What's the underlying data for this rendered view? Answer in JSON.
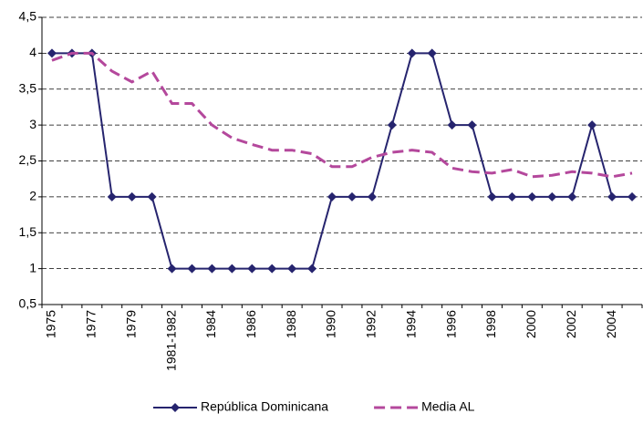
{
  "chart_data": {
    "type": "line",
    "categories": [
      "1975",
      null,
      "1977",
      null,
      "1979",
      null,
      "1981-1982",
      null,
      "1984",
      null,
      "1986",
      null,
      "1988",
      null,
      "1990",
      null,
      "1992",
      null,
      "1994",
      null,
      "1996",
      null,
      "1998",
      null,
      "2000",
      null,
      "2002",
      null,
      "2004",
      null
    ],
    "series": [
      {
        "name": "República Dominicana",
        "color": "#26246e",
        "marker": "diamond",
        "dash": false,
        "values": [
          4,
          4,
          4,
          2,
          2,
          2,
          1,
          1,
          1,
          1,
          1,
          1,
          1,
          1,
          2,
          2,
          2,
          3,
          4,
          4,
          3,
          3,
          2,
          2,
          2,
          2,
          2,
          3,
          2,
          2
        ]
      },
      {
        "name": "Media AL",
        "color": "#b4489c",
        "marker": "none",
        "dash": true,
        "values": [
          3.9,
          4.0,
          4.0,
          3.75,
          3.6,
          3.75,
          3.3,
          3.3,
          3.0,
          2.82,
          2.73,
          2.65,
          2.65,
          2.6,
          2.42,
          2.42,
          2.55,
          2.62,
          2.65,
          2.62,
          2.4,
          2.35,
          2.33,
          2.38,
          2.28,
          2.3,
          2.35,
          2.33,
          2.28,
          2.33
        ]
      }
    ],
    "ylim": [
      0.5,
      4.5
    ],
    "yticks": [
      {
        "value": 0.5,
        "label": "0,5"
      },
      1,
      {
        "value": 1.5,
        "label": "1,5"
      },
      2,
      {
        "value": 2.5,
        "label": "2,5"
      },
      3,
      {
        "value": 3.5,
        "label": "3,5"
      },
      4,
      {
        "value": 4.5,
        "label": "4,5"
      }
    ],
    "grid": true,
    "legend": "bottom"
  }
}
